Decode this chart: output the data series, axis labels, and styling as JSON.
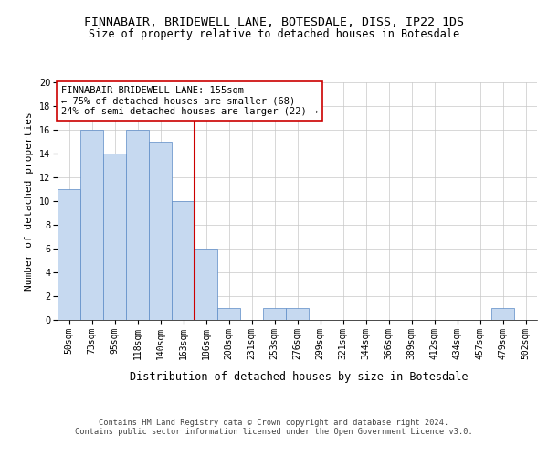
{
  "title": "FINNABAIR, BRIDEWELL LANE, BOTESDALE, DISS, IP22 1DS",
  "subtitle": "Size of property relative to detached houses in Botesdale",
  "xlabel": "Distribution of detached houses by size in Botesdale",
  "ylabel": "Number of detached properties",
  "categories": [
    "50sqm",
    "73sqm",
    "95sqm",
    "118sqm",
    "140sqm",
    "163sqm",
    "186sqm",
    "208sqm",
    "231sqm",
    "253sqm",
    "276sqm",
    "299sqm",
    "321sqm",
    "344sqm",
    "366sqm",
    "389sqm",
    "412sqm",
    "434sqm",
    "457sqm",
    "479sqm",
    "502sqm"
  ],
  "values": [
    11,
    16,
    14,
    16,
    15,
    10,
    6,
    1,
    0,
    1,
    1,
    0,
    0,
    0,
    0,
    0,
    0,
    0,
    0,
    1,
    0
  ],
  "bar_color": "#c6d9f0",
  "bar_edge_color": "#5a8ac6",
  "vline_x": 5.5,
  "vline_color": "#cc0000",
  "annotation_text": "FINNABAIR BRIDEWELL LANE: 155sqm\n← 75% of detached houses are smaller (68)\n24% of semi-detached houses are larger (22) →",
  "annotation_box_color": "#ffffff",
  "annotation_box_edge": "#cc0000",
  "ylim": [
    0,
    20
  ],
  "yticks": [
    0,
    2,
    4,
    6,
    8,
    10,
    12,
    14,
    16,
    18,
    20
  ],
  "grid_color": "#c8c8c8",
  "background_color": "#ffffff",
  "footer_text": "Contains HM Land Registry data © Crown copyright and database right 2024.\nContains public sector information licensed under the Open Government Licence v3.0.",
  "title_fontsize": 9.5,
  "subtitle_fontsize": 8.5,
  "xlabel_fontsize": 8.5,
  "ylabel_fontsize": 8.0,
  "tick_fontsize": 7.0,
  "annotation_fontsize": 7.5,
  "footer_fontsize": 6.2
}
